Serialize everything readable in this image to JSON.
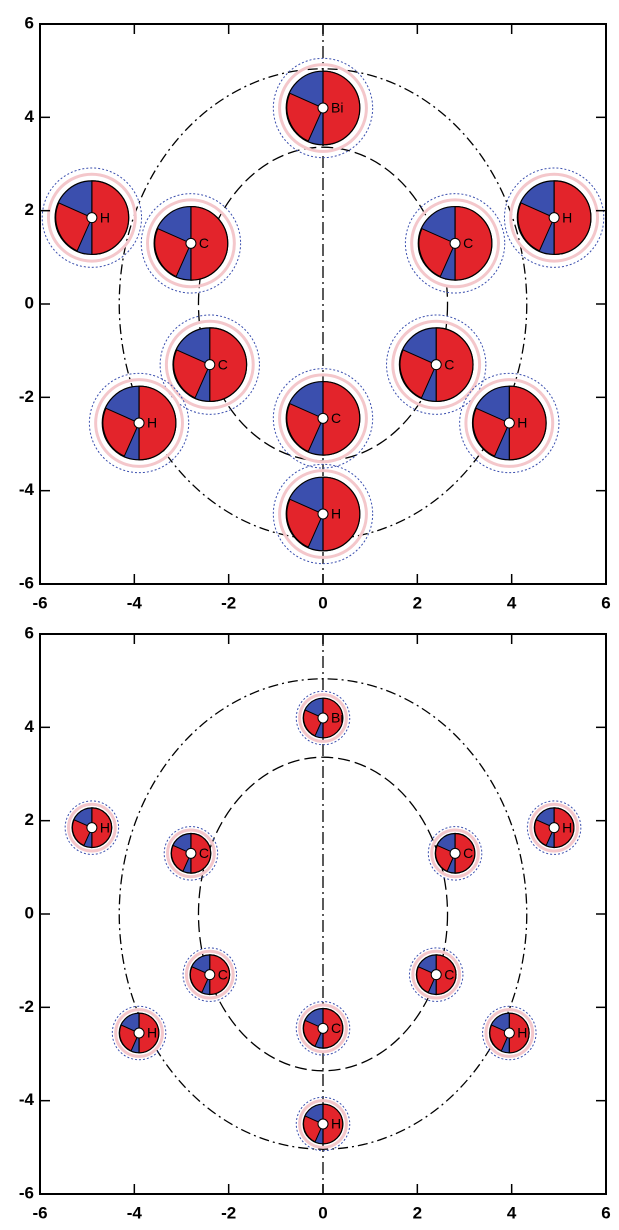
{
  "chart_data": [
    {
      "type": "scatter",
      "x": [
        0,
        -4.9,
        -2.8,
        -2.4,
        -3.9,
        0,
        0,
        2.4,
        3.95,
        2.8,
        4.9
      ],
      "y": [
        4.2,
        1.85,
        1.3,
        -1.3,
        -2.55,
        -2.45,
        -4.5,
        -1.3,
        -2.55,
        1.3,
        1.85
      ],
      "labels": [
        "Bi",
        "H",
        "C",
        "C",
        "H",
        "C",
        "H",
        "C",
        "H",
        "C",
        "H"
      ],
      "xlim": [
        -6,
        6
      ],
      "ylim": [
        -6,
        6
      ],
      "xticks": [
        -6,
        -4,
        -2,
        0,
        2,
        4,
        6
      ],
      "yticks": [
        -6,
        -4,
        -2,
        0,
        2,
        4,
        6
      ],
      "colors": {
        "positive": "#e3242b",
        "negative": "#3b4fae",
        "faint": "#f4c7cb",
        "point": "#ffffff"
      }
    },
    {
      "type": "scatter",
      "x": [
        0,
        -4.9,
        -2.8,
        -2.4,
        -3.9,
        0,
        0,
        2.4,
        3.95,
        2.8,
        4.9
      ],
      "y": [
        4.2,
        1.85,
        1.3,
        -1.3,
        -2.55,
        -2.45,
        -4.5,
        -1.3,
        -2.55,
        1.3,
        1.85
      ],
      "labels": [
        "Bi",
        "H",
        "C",
        "C",
        "H",
        "C",
        "H",
        "C",
        "H",
        "C",
        "H"
      ],
      "xlim": [
        -6,
        6
      ],
      "ylim": [
        -6,
        6
      ],
      "xticks": [
        -6,
        -4,
        -2,
        0,
        2,
        4,
        6
      ],
      "yticks": [
        -6,
        -4,
        -2,
        0,
        2,
        4,
        6
      ],
      "colors": {
        "positive": "#e3242b",
        "negative": "#3b4fae",
        "faint": "#f4c7cb",
        "point": "#ffffff"
      }
    }
  ]
}
